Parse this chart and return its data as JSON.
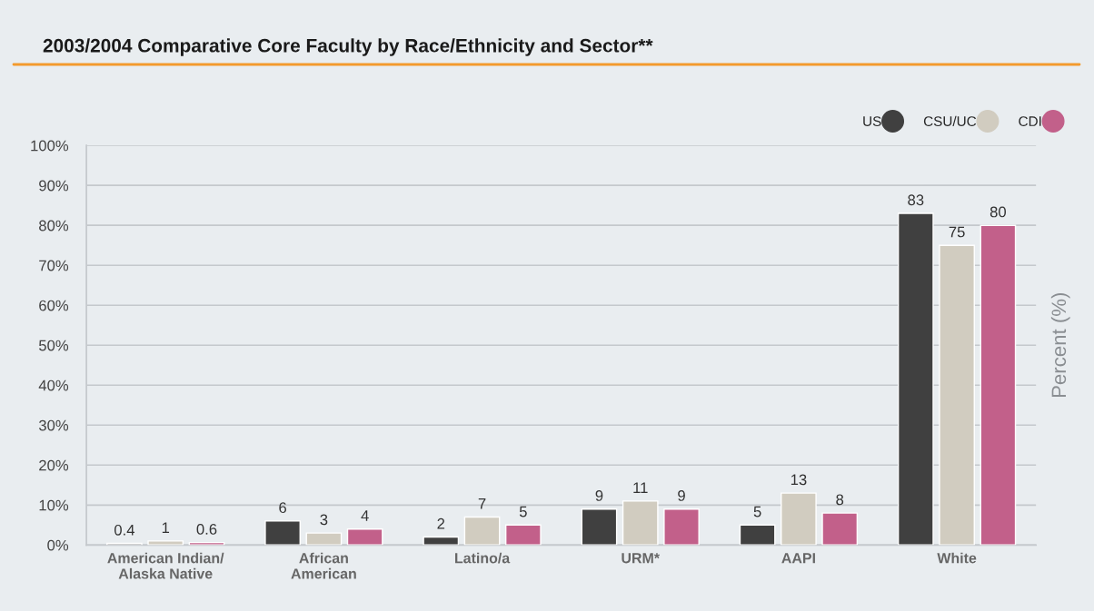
{
  "chart_data": {
    "type": "bar",
    "title": "2003/2004 Comparative Core Faculty by Race/Ethnicity and Sector**",
    "ylabel": "Percent (%)",
    "categories": [
      "American Indian/\nAlaska Native",
      "African\nAmerican",
      "Latino/a",
      "URM*",
      "AAPI",
      "White"
    ],
    "series": [
      {
        "name": "US",
        "color": "#404040",
        "values": [
          0.4,
          6,
          2,
          9,
          5,
          83
        ]
      },
      {
        "name": "CSU/UC",
        "color": "#d1ccc0",
        "values": [
          1,
          3,
          7,
          11,
          13,
          75
        ]
      },
      {
        "name": "CDI",
        "color": "#c2608a",
        "values": [
          0.6,
          4,
          5,
          9,
          8,
          80
        ]
      }
    ],
    "ylim": [
      0,
      100
    ],
    "yticks": [
      {
        "value": 0,
        "label": "0%"
      },
      {
        "value": 10,
        "label": "10%"
      },
      {
        "value": 20,
        "label": "20%"
      },
      {
        "value": 30,
        "label": "30%"
      },
      {
        "value": 40,
        "label": "40%"
      },
      {
        "value": 50,
        "label": "50%"
      },
      {
        "value": 60,
        "label": "60%"
      },
      {
        "value": 70,
        "label": "70%"
      },
      {
        "value": 80,
        "label": "80%"
      },
      {
        "value": 90,
        "label": "90%"
      },
      {
        "value": 100,
        "label": "100%"
      }
    ],
    "grid": "y",
    "legend": "top right",
    "data_labels": true
  }
}
